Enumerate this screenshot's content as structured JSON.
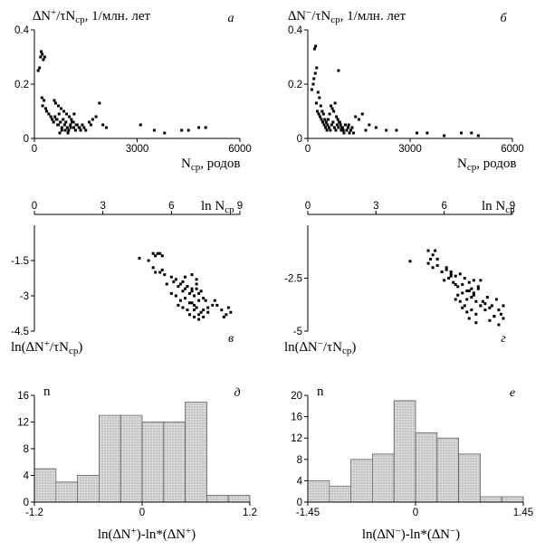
{
  "chart_data": [
    {
      "id": "a",
      "type": "scatter",
      "panel_letter": "а",
      "ylabel": "∆N⁺/τN_ср, 1/млн. лет",
      "xlabel": "N_ср, родов",
      "xlim": [
        0,
        6000
      ],
      "ylim": [
        0,
        0.4
      ],
      "xticks": [
        "0",
        "3000",
        "6000"
      ],
      "yticks": [
        "0",
        "0.2",
        "0.4"
      ],
      "grid": false,
      "x": [
        110,
        150,
        180,
        200,
        230,
        260,
        300,
        220,
        240,
        280,
        330,
        360,
        420,
        480,
        520,
        560,
        600,
        640,
        680,
        720,
        760,
        800,
        840,
        880,
        920,
        960,
        1000,
        1050,
        1100,
        1150,
        1200,
        1250,
        1300,
        1350,
        1400,
        1450,
        580,
        620,
        700,
        780,
        860,
        940,
        1020,
        1080,
        1140,
        1220,
        900,
        980,
        1060,
        800,
        740,
        660,
        1160,
        1320,
        1600,
        1700,
        1800,
        1900,
        2000,
        2100,
        3100,
        3500,
        3800,
        4300,
        4500,
        4800,
        5000,
        700,
        760,
        1500,
        1650
      ],
      "y": [
        0.25,
        0.26,
        0.3,
        0.32,
        0.31,
        0.29,
        0.3,
        0.15,
        0.12,
        0.14,
        0.11,
        0.1,
        0.09,
        0.08,
        0.07,
        0.06,
        0.08,
        0.07,
        0.05,
        0.09,
        0.06,
        0.04,
        0.07,
        0.05,
        0.06,
        0.04,
        0.03,
        0.05,
        0.06,
        0.04,
        0.03,
        0.05,
        0.04,
        0.03,
        0.05,
        0.04,
        0.14,
        0.13,
        0.12,
        0.11,
        0.1,
        0.09,
        0.08,
        0.07,
        0.06,
        0.05,
        0.03,
        0.02,
        0.04,
        0.03,
        0.02,
        0.07,
        0.09,
        0.04,
        0.06,
        0.07,
        0.08,
        0.13,
        0.05,
        0.04,
        0.05,
        0.03,
        0.02,
        0.03,
        0.03,
        0.04,
        0.04,
        0.05,
        0.06,
        0.03,
        0.05
      ]
    },
    {
      "id": "b",
      "type": "scatter",
      "panel_letter": "б",
      "ylabel": "∆N⁻/τN_ср, 1/млн. лет",
      "xlabel": "N_ср, родов",
      "xlim": [
        0,
        6000
      ],
      "ylim": [
        0,
        0.4
      ],
      "xticks": [
        "0",
        "3000",
        "6000"
      ],
      "yticks": [
        "0",
        "0.2",
        "0.4"
      ],
      "grid": false,
      "x": [
        120,
        160,
        200,
        230,
        260,
        180,
        220,
        300,
        340,
        380,
        420,
        460,
        500,
        540,
        580,
        620,
        660,
        700,
        740,
        780,
        820,
        860,
        900,
        940,
        980,
        1020,
        1060,
        1100,
        1140,
        1180,
        1220,
        1260,
        1300,
        1340,
        250,
        280,
        320,
        360,
        400,
        440,
        480,
        520,
        560,
        600,
        640,
        680,
        720,
        760,
        800,
        840,
        880,
        920,
        960,
        1000,
        1040,
        1600,
        1800,
        2000,
        2300,
        2600,
        3200,
        3500,
        4000,
        4500,
        4800,
        5000,
        1700,
        900,
        1200,
        1400,
        1500
      ],
      "y": [
        0.18,
        0.2,
        0.33,
        0.34,
        0.26,
        0.22,
        0.24,
        0.17,
        0.15,
        0.12,
        0.1,
        0.09,
        0.07,
        0.06,
        0.05,
        0.04,
        0.03,
        0.05,
        0.06,
        0.04,
        0.03,
        0.05,
        0.04,
        0.06,
        0.03,
        0.04,
        0.02,
        0.05,
        0.03,
        0.04,
        0.02,
        0.03,
        0.04,
        0.02,
        0.13,
        0.1,
        0.09,
        0.08,
        0.07,
        0.06,
        0.05,
        0.04,
        0.03,
        0.07,
        0.09,
        0.12,
        0.11,
        0.1,
        0.13,
        0.08,
        0.07,
        0.06,
        0.05,
        0.04,
        0.03,
        0.09,
        0.05,
        0.04,
        0.03,
        0.03,
        0.02,
        0.02,
        0.01,
        0.02,
        0.02,
        0.01,
        0.03,
        0.25,
        0.05,
        0.08,
        0.07
      ]
    },
    {
      "id": "c",
      "type": "scatter",
      "panel_letter": "в",
      "ylabel": "ln(∆N⁺/τN_ср)",
      "xlabel": "ln N_ср",
      "xlim": [
        0,
        9
      ],
      "ylim": [
        -4.5,
        0
      ],
      "xticks": [
        "0",
        "3",
        "6",
        "9"
      ],
      "yticks": [
        "-1.5",
        "-3",
        "-4.5"
      ],
      "grid": false,
      "x": [
        4.6,
        5.0,
        5.2,
        5.3,
        5.4,
        5.5,
        5.6,
        5.2,
        5.3,
        5.5,
        5.6,
        5.7,
        5.8,
        6.0,
        6.1,
        6.2,
        6.3,
        6.4,
        6.5,
        6.6,
        6.7,
        6.8,
        6.9,
        7.0,
        7.1,
        7.2,
        6.0,
        6.2,
        6.4,
        6.6,
        6.8,
        7.0,
        7.2,
        7.4,
        6.5,
        6.7,
        6.9,
        7.1,
        7.3,
        6.3,
        6.5,
        6.7,
        6.9,
        7.1,
        7.3,
        7.5,
        7.0,
        7.2,
        7.4,
        7.6,
        7.8,
        6.8,
        7.0,
        7.2,
        7.4,
        7.6,
        8.0,
        8.2,
        8.4,
        8.6,
        7.9,
        8.3,
        8.5,
        6.6,
        6.9,
        7.1
      ],
      "y": [
        -1.4,
        -1.5,
        -1.2,
        -1.3,
        -1.2,
        -1.2,
        -1.3,
        -1.8,
        -2.0,
        -2.0,
        -1.9,
        -2.1,
        -2.5,
        -2.2,
        -2.4,
        -2.3,
        -2.6,
        -2.5,
        -2.8,
        -2.7,
        -2.6,
        -2.9,
        -2.8,
        -3.0,
        -2.7,
        -2.9,
        -2.9,
        -3.0,
        -3.2,
        -3.1,
        -3.3,
        -3.4,
        -3.2,
        -3.1,
        -2.4,
        -2.6,
        -2.7,
        -2.5,
        -2.8,
        -3.4,
        -3.5,
        -3.6,
        -3.3,
        -3.5,
        -3.7,
        -3.2,
        -3.6,
        -3.8,
        -3.9,
        -3.7,
        -3.4,
        -3.8,
        -3.9,
        -4.0,
        -3.6,
        -3.5,
        -3.4,
        -3.6,
        -3.8,
        -3.7,
        -3.2,
        -3.9,
        -3.5,
        -2.2,
        -2.1,
        -2.3
      ]
    },
    {
      "id": "d",
      "type": "scatter",
      "panel_letter": "г",
      "ylabel": "ln(∆N⁻/τN_ср)",
      "xlabel": "ln N_ср",
      "xlim": [
        0,
        9
      ],
      "ylim": [
        -5,
        0
      ],
      "xticks": [
        "0",
        "3",
        "6",
        "9"
      ],
      "yticks": [
        "-2.5",
        "-5"
      ],
      "grid": false,
      "x": [
        4.5,
        5.3,
        5.4,
        5.5,
        5.6,
        5.7,
        5.3,
        5.5,
        5.7,
        5.9,
        6.1,
        6.3,
        6.0,
        6.2,
        6.4,
        6.6,
        6.8,
        7.0,
        7.2,
        6.3,
        6.5,
        6.7,
        6.9,
        7.1,
        7.3,
        7.5,
        6.6,
        6.8,
        7.0,
        7.2,
        7.4,
        7.6,
        7.8,
        6.8,
        7.0,
        7.2,
        7.4,
        7.6,
        7.8,
        8.0,
        8.2,
        7.1,
        7.3,
        7.5,
        7.7,
        7.9,
        8.1,
        8.3,
        8.5,
        8.0,
        8.2,
        8.4,
        8.6,
        6.5,
        6.7,
        6.9,
        7.1,
        7.3,
        6.1,
        6.3,
        6.5,
        8.6,
        8.4,
        7.6,
        7.4
      ],
      "y": [
        -1.7,
        -1.2,
        -1.6,
        -1.4,
        -1.2,
        -1.6,
        -1.8,
        -2.0,
        -1.9,
        -2.2,
        -2.1,
        -2.4,
        -2.6,
        -2.5,
        -2.7,
        -2.9,
        -2.8,
        -3.1,
        -3.0,
        -2.2,
        -2.4,
        -2.3,
        -2.5,
        -2.7,
        -2.6,
        -2.9,
        -3.3,
        -3.2,
        -3.5,
        -3.4,
        -3.6,
        -3.8,
        -3.7,
        -3.9,
        -4.1,
        -4.0,
        -4.2,
        -3.8,
        -4.0,
        -3.9,
        -4.3,
        -3.1,
        -3.3,
        -3.0,
        -3.6,
        -3.4,
        -3.8,
        -3.5,
        -4.2,
        -4.5,
        -4.3,
        -4.7,
        -4.4,
        -3.5,
        -3.6,
        -3.8,
        -4.4,
        -3.2,
        -2.0,
        -2.3,
        -2.8,
        -3.8,
        -4.0,
        -2.6,
        -4.6
      ]
    },
    {
      "id": "e",
      "type": "bar",
      "panel_letter": "д",
      "ylabel": "n",
      "xlabel": "ln(∆N⁺)-ln*(∆N⁺)",
      "xlim": [
        -1.2,
        1.2
      ],
      "ylim": [
        0,
        16
      ],
      "xticks": [
        "-1.2",
        "0",
        "1.2"
      ],
      "yticks": [
        "0",
        "4",
        "8",
        "12",
        "16"
      ],
      "grid": "horizontal",
      "bin_edges": [
        -1.2,
        -0.96,
        -0.72,
        -0.48,
        -0.24,
        0.0,
        0.24,
        0.48,
        0.72,
        0.96,
        1.2
      ],
      "values": [
        5,
        3,
        4,
        13,
        13,
        12,
        12,
        15,
        1,
        1
      ]
    },
    {
      "id": "f",
      "type": "bar",
      "panel_letter": "е",
      "ylabel": "n",
      "xlabel": "ln(∆N⁻)-ln*(∆N⁻)",
      "xlim": [
        -1.45,
        1.45
      ],
      "ylim": [
        0,
        20
      ],
      "xticks": [
        "-1.45",
        "0",
        "1.45"
      ],
      "yticks": [
        "0",
        "4",
        "8",
        "12",
        "16",
        "20"
      ],
      "grid": "horizontal",
      "bin_edges": [
        -1.45,
        -1.16,
        -0.87,
        -0.58,
        -0.29,
        0.0,
        0.29,
        0.58,
        0.87,
        1.16,
        1.45
      ],
      "values": [
        4,
        3,
        8,
        9,
        19,
        13,
        12,
        9,
        1,
        1
      ]
    }
  ]
}
